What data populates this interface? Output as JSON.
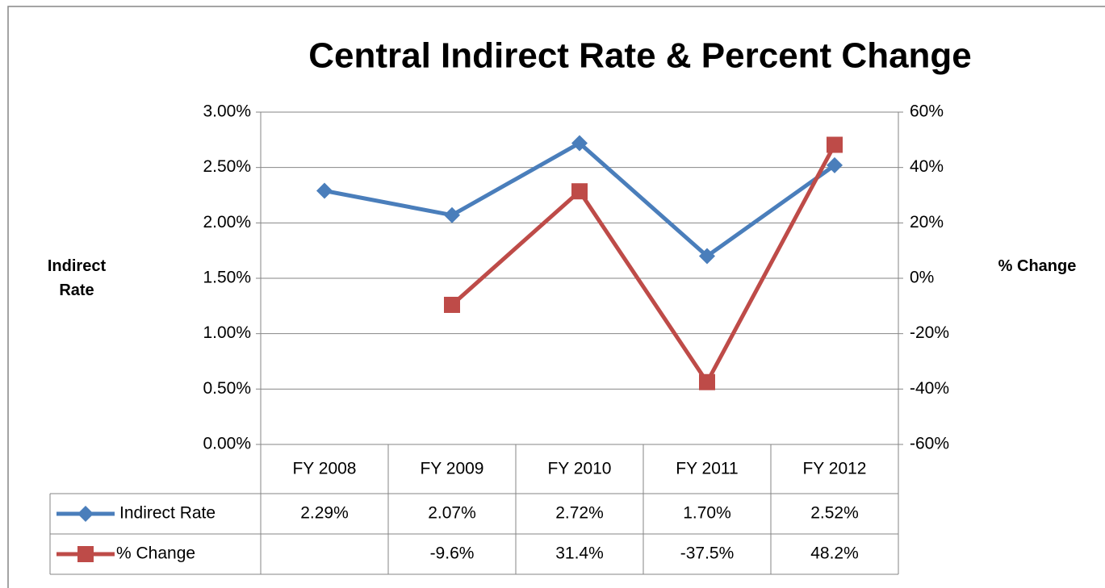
{
  "chart_data": {
    "type": "line",
    "title": "Central Indirect Rate & Percent Change",
    "y_label": "Indirect Rate",
    "y2_label": "% Change",
    "categories": [
      "FY 2008",
      "FY 2009",
      "FY 2010",
      "FY 2011",
      "FY 2012"
    ],
    "series": [
      {
        "name": "Indirect Rate",
        "color": "#4a7ebb",
        "marker": "diamond",
        "values": [
          2.29,
          2.07,
          2.72,
          1.7,
          2.52
        ],
        "value_labels": [
          "2.29%",
          "2.07%",
          "2.72%",
          "1.70%",
          "2.52%"
        ]
      },
      {
        "name": "% Change",
        "color": "#be4b48",
        "marker": "square",
        "axis": "y2",
        "values": [
          null,
          -9.6,
          31.4,
          -37.5,
          48.2
        ],
        "value_labels": [
          null,
          "-9.6%",
          "31.4%",
          "-37.5%",
          "48.2%"
        ]
      }
    ],
    "ylim": [
      0,
      3
    ],
    "yticks": [
      {
        "value": 0,
        "label": "0.00%"
      },
      {
        "value": 0.5,
        "label": "0.50%"
      },
      {
        "value": 1,
        "label": "1.00%"
      },
      {
        "value": 1.5,
        "label": "1.50%"
      },
      {
        "value": 2,
        "label": "2.00%"
      },
      {
        "value": 2.5,
        "label": "2.50%"
      },
      {
        "value": 3,
        "label": "3.00%"
      }
    ],
    "y2lim": [
      -60,
      60
    ],
    "y2ticks": [
      {
        "value": -60,
        "label": "-60%"
      },
      {
        "value": -40,
        "label": "-40%"
      },
      {
        "value": -20,
        "label": "-20%"
      },
      {
        "value": 0,
        "label": "0%"
      },
      {
        "value": 20,
        "label": "20%"
      },
      {
        "value": 40,
        "label": "40%"
      },
      {
        "value": 60,
        "label": "60%"
      }
    ],
    "grid": true,
    "data_table": true
  }
}
